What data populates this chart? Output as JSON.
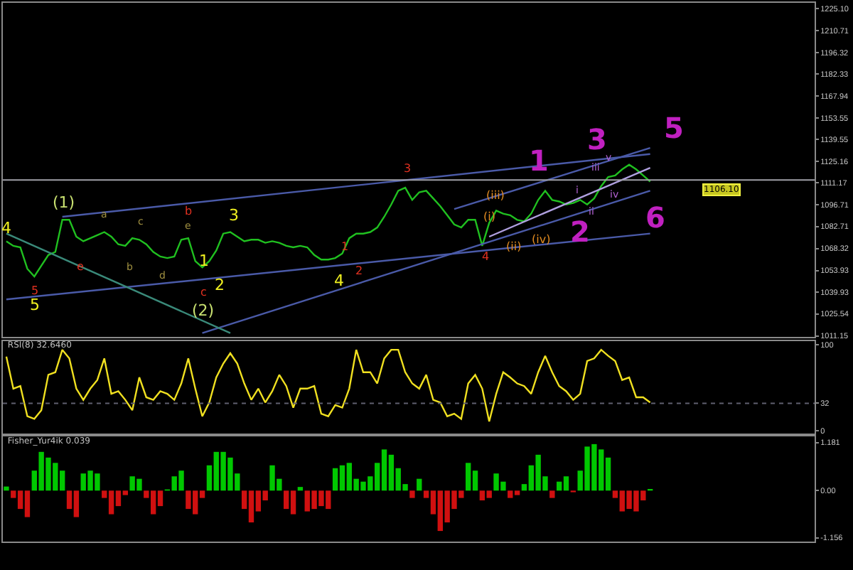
{
  "chart_data": [
    {
      "type": "line",
      "categories": [
        null,
        null,
        null,
        null,
        null,
        null,
        null,
        null,
        null,
        null,
        null,
        null,
        null,
        null,
        null,
        null,
        null,
        null,
        null,
        null,
        null,
        null,
        null,
        null,
        null,
        null,
        null,
        null,
        null,
        null,
        null,
        null,
        null,
        null,
        null,
        null,
        null,
        null,
        null,
        null,
        null,
        null,
        null,
        null,
        null,
        null,
        null,
        null,
        null,
        null,
        null,
        null,
        null,
        null,
        null,
        null,
        null,
        null,
        null,
        null,
        null,
        null,
        null,
        null,
        null,
        null,
        null,
        null,
        null,
        null,
        null,
        null,
        null,
        null,
        null,
        null,
        null,
        null,
        null,
        null,
        null,
        null,
        null,
        null,
        null,
        null,
        null,
        null,
        null,
        null,
        null,
        null,
        null
      ],
      "ylim": [
        1010.5,
        1228.8
      ],
      "yticks": [
        {
          "value": 1225.1,
          "label": "1225.10"
        },
        1210.71,
        1196.32,
        1182.33,
        1167.94,
        1153.55,
        1139.55,
        1125.16,
        1111.17,
        1096.71,
        1082.71,
        1068.32,
        1053.93,
        1039.93,
        1025.54,
        1011.15
      ],
      "tick_labels": "y",
      "ref_lines": [
        {
          "axis": "y",
          "value": 1113,
          "color": "#a0a0a8",
          "line_style": "solid"
        }
      ],
      "annotations": [
        "4",
        "5",
        "3",
        "1",
        "2",
        "4",
        "(1)",
        "(2)",
        "b",
        "c",
        "e",
        "5",
        "1",
        "2",
        "3",
        "4",
        "a",
        "b",
        "c",
        "d",
        "e",
        "(iii)",
        "(i)",
        "(ii)",
        "(iv)",
        "iii",
        "v",
        "i",
        "ii",
        "iv",
        "1",
        "2",
        "3",
        "5",
        "6",
        "1106.10"
      ],
      "series": [
        {
          "color": "#20c020",
          "values": [
            1073,
            1070,
            1069,
            1055,
            1050,
            1057,
            1064,
            1066,
            1087,
            1087,
            1076,
            1073,
            1075,
            1077,
            1079,
            1076,
            1071,
            1070,
            1075,
            1074,
            1071,
            1066,
            1063,
            1062,
            1063,
            1074,
            1075,
            1060,
            1056,
            1060,
            1067,
            1078,
            1079,
            1076,
            1073,
            1074,
            1074,
            1072,
            1073,
            1072,
            1070,
            1069,
            1070,
            1069,
            1064,
            1061,
            1061,
            1062,
            1065,
            1075,
            1078,
            1078,
            1079,
            1082,
            1089,
            1097,
            1106,
            1108,
            1100,
            1105,
            1106,
            1101,
            1096,
            1090,
            1084,
            1082,
            1087,
            1087,
            1070,
            1085,
            1093,
            1091,
            1090,
            1087,
            1086,
            1091,
            1100,
            1106,
            1100,
            1099,
            1097,
            1098,
            1100,
            1097,
            1101,
            1109,
            1115,
            1116,
            1120,
            1123,
            1120,
            1116,
            1112
          ]
        },
        {
          "type": "line",
          "color": "#4a5aa8",
          "values": [
            null,
            null,
            null,
            null,
            null,
            null,
            null,
            null,
            1089,
            null,
            null,
            null,
            null,
            null,
            null,
            null,
            null,
            null,
            null,
            null,
            null,
            null,
            null,
            null,
            null,
            null,
            null,
            null,
            null,
            null,
            null,
            null,
            null,
            null,
            null,
            null,
            null,
            null,
            null,
            null,
            null,
            null,
            null,
            null,
            null,
            null,
            null,
            null,
            null,
            null,
            null,
            null,
            null,
            null,
            null,
            null,
            null,
            null,
            null,
            null,
            null,
            null,
            null,
            null,
            null,
            null,
            null,
            null,
            null,
            null,
            null,
            null,
            null,
            null,
            null,
            null,
            null,
            null,
            null,
            null,
            null,
            null,
            null,
            null,
            null,
            null,
            null,
            null,
            null,
            null,
            null,
            null,
            1130
          ]
        },
        {
          "type": "line",
          "color": "#4a5aa8",
          "values": [
            1035,
            null,
            null,
            null,
            null,
            null,
            null,
            null,
            null,
            null,
            null,
            null,
            null,
            null,
            null,
            null,
            null,
            null,
            null,
            null,
            null,
            null,
            null,
            null,
            null,
            null,
            null,
            null,
            null,
            null,
            null,
            null,
            null,
            null,
            null,
            null,
            null,
            null,
            null,
            null,
            null,
            null,
            null,
            null,
            null,
            null,
            null,
            null,
            null,
            null,
            null,
            null,
            null,
            null,
            null,
            null,
            null,
            null,
            null,
            null,
            null,
            null,
            null,
            null,
            null,
            null,
            null,
            null,
            null,
            null,
            null,
            null,
            null,
            null,
            null,
            null,
            null,
            null,
            null,
            null,
            null,
            null,
            null,
            null,
            null,
            null,
            null,
            null,
            null,
            null,
            null,
            null,
            1078
          ]
        },
        {
          "type": "line",
          "color": "#4a5aa8",
          "values": [
            null,
            null,
            null,
            null,
            null,
            null,
            null,
            null,
            null,
            null,
            null,
            null,
            null,
            null,
            null,
            null,
            null,
            null,
            null,
            null,
            null,
            null,
            null,
            null,
            null,
            null,
            null,
            null,
            1013,
            null,
            null,
            null,
            null,
            null,
            null,
            null,
            null,
            null,
            null,
            null,
            null,
            null,
            null,
            null,
            null,
            null,
            null,
            null,
            null,
            null,
            null,
            null,
            null,
            null,
            null,
            null,
            null,
            null,
            null,
            null,
            null,
            null,
            null,
            null,
            null,
            null,
            null,
            null,
            null,
            null,
            null,
            null,
            null,
            null,
            null,
            null,
            null,
            null,
            null,
            null,
            null,
            null,
            null,
            null,
            null,
            null,
            null,
            null,
            null,
            null,
            null,
            null,
            1106
          ]
        },
        {
          "type": "line",
          "color": "#3a8a7a",
          "values": [
            1078,
            null,
            null,
            null,
            null,
            null,
            null,
            null,
            null,
            null,
            null,
            null,
            null,
            null,
            null,
            null,
            null,
            null,
            null,
            null,
            null,
            null,
            null,
            null,
            null,
            null,
            null,
            null,
            null,
            null,
            null,
            null,
            1013,
            null,
            null,
            null,
            null,
            null,
            null,
            null,
            null,
            null,
            null,
            null,
            null,
            null,
            null,
            null,
            null,
            null,
            null,
            null,
            null,
            null,
            null,
            null,
            null,
            null,
            null,
            null,
            null,
            null,
            null,
            null,
            null,
            null,
            null,
            null,
            null,
            null,
            null,
            null,
            null,
            null,
            null,
            null,
            null,
            null,
            null,
            null,
            null,
            null,
            null,
            null,
            null,
            null,
            null,
            null,
            null,
            null,
            null,
            null,
            null
          ]
        },
        {
          "type": "line",
          "color": "#4a5aa8",
          "values": [
            null,
            null,
            null,
            null,
            null,
            null,
            null,
            null,
            null,
            null,
            null,
            null,
            null,
            null,
            null,
            null,
            null,
            null,
            null,
            null,
            null,
            null,
            null,
            null,
            null,
            null,
            null,
            null,
            null,
            null,
            null,
            null,
            null,
            null,
            null,
            null,
            null,
            null,
            null,
            null,
            null,
            null,
            null,
            null,
            null,
            null,
            null,
            null,
            null,
            null,
            null,
            null,
            null,
            null,
            null,
            null,
            null,
            null,
            null,
            null,
            null,
            null,
            null,
            null,
            1094,
            null,
            null,
            null,
            null,
            null,
            null,
            null,
            null,
            null,
            null,
            null,
            null,
            null,
            null,
            null,
            null,
            null,
            null,
            null,
            null,
            null,
            null,
            null,
            null,
            null,
            null,
            null,
            1134
          ]
        },
        {
          "type": "line",
          "color": "#b0a0e0",
          "values": [
            null,
            null,
            null,
            null,
            null,
            null,
            null,
            null,
            null,
            null,
            null,
            null,
            null,
            null,
            null,
            null,
            null,
            null,
            null,
            null,
            null,
            null,
            null,
            null,
            null,
            null,
            null,
            null,
            null,
            null,
            null,
            null,
            null,
            null,
            null,
            null,
            null,
            null,
            null,
            null,
            null,
            null,
            null,
            null,
            null,
            null,
            null,
            null,
            null,
            null,
            null,
            null,
            null,
            null,
            null,
            null,
            null,
            null,
            null,
            null,
            null,
            null,
            null,
            null,
            null,
            null,
            null,
            null,
            null,
            1076,
            null,
            null,
            null,
            null,
            null,
            null,
            null,
            null,
            null,
            null,
            null,
            null,
            null,
            null,
            null,
            null,
            null,
            null,
            null,
            null,
            null,
            null,
            1121
          ]
        }
      ]
    },
    {
      "type": "line",
      "title": "RSI(8) 32.6460",
      "categories": [
        null,
        null,
        null,
        null,
        null,
        null,
        null,
        null,
        null,
        null,
        null,
        null,
        null,
        null,
        null,
        null,
        null,
        null,
        null,
        null,
        null,
        null,
        null,
        null,
        null,
        null,
        null,
        null,
        null,
        null,
        null,
        null,
        null,
        null,
        null,
        null,
        null,
        null,
        null,
        null,
        null,
        null,
        null,
        null,
        null,
        null,
        null,
        null,
        null,
        null,
        null,
        null,
        null,
        null,
        null,
        null,
        null,
        null,
        null,
        null,
        null,
        null,
        null,
        null,
        null,
        null,
        null,
        null,
        null,
        null,
        null,
        null,
        null,
        null,
        null,
        null,
        null,
        null,
        null,
        null,
        null,
        null,
        null,
        null,
        null,
        null,
        null,
        null,
        null,
        null,
        null,
        null,
        null
      ],
      "ylim": [
        -3,
        104
      ],
      "yticks": [
        100,
        32,
        0
      ],
      "tick_labels": "y",
      "ref_lines": [
        {
          "axis": "y",
          "value": 32,
          "color": "#606070",
          "line_style": "dotted"
        }
      ],
      "series": [
        {
          "color": "#f0e020",
          "values": [
            86,
            49,
            52,
            17,
            14,
            24,
            65,
            68,
            94,
            84,
            49,
            36,
            49,
            59,
            84,
            43,
            46,
            36,
            24,
            62,
            39,
            36,
            46,
            43,
            36,
            55,
            84,
            49,
            17,
            33,
            62,
            78,
            90,
            78,
            55,
            36,
            49,
            33,
            46,
            65,
            52,
            27,
            49,
            49,
            52,
            20,
            17,
            30,
            27,
            49,
            94,
            68,
            68,
            55,
            84,
            94,
            94,
            68,
            55,
            49,
            65,
            36,
            33,
            17,
            20,
            14,
            55,
            65,
            49,
            11,
            43,
            68,
            62,
            55,
            52,
            43,
            68,
            87,
            68,
            52,
            46,
            36,
            43,
            81,
            84,
            94,
            87,
            81,
            59,
            62,
            39,
            39,
            33
          ]
        }
      ]
    },
    {
      "type": "bar",
      "title": "Fisher_Yur4ik 0.039",
      "categories": [
        null,
        null,
        null,
        null,
        null,
        null,
        null,
        null,
        null,
        null,
        null,
        null,
        null,
        null,
        null,
        null,
        null,
        null,
        null,
        null,
        null,
        null,
        null,
        null,
        null,
        null,
        null,
        null,
        null,
        null,
        null,
        null,
        null,
        null,
        null,
        null,
        null,
        null,
        null,
        null,
        null,
        null,
        null,
        null,
        null,
        null,
        null,
        null,
        null,
        null,
        null,
        null,
        null,
        null,
        null,
        null,
        null,
        null,
        null,
        null,
        null,
        null,
        null,
        null,
        null,
        null,
        null,
        null,
        null,
        null,
        null,
        null,
        null,
        null,
        null,
        null,
        null,
        null,
        null,
        null,
        null,
        null,
        null,
        null,
        null,
        null,
        null,
        null,
        null,
        null,
        null,
        null,
        null,
        null,
        null,
        null,
        null,
        null,
        null,
        null,
        null,
        null,
        null,
        null,
        null,
        null,
        null,
        null,
        null,
        null,
        null,
        null,
        null,
        null,
        null,
        null
      ],
      "ylim": [
        -1.25,
        1.33
      ],
      "yticks": [
        1.181,
        {
          "value": 0,
          "label": "0.00"
        },
        -1.156
      ],
      "tick_labels": "y",
      "values": [
        0.1,
        -0.18,
        -0.45,
        -0.65,
        0.49,
        0.95,
        0.81,
        0.68,
        0.49,
        -0.45,
        -0.65,
        0.42,
        0.49,
        0.42,
        -0.18,
        -0.58,
        -0.38,
        -0.11,
        0.35,
        0.29,
        -0.18,
        -0.58,
        -0.38,
        0.03,
        0.35,
        0.49,
        -0.45,
        -0.58,
        -0.18,
        0.62,
        0.95,
        0.95,
        0.81,
        0.42,
        -0.45,
        -0.78,
        -0.51,
        -0.24,
        0.62,
        0.29,
        -0.45,
        -0.58,
        0.09,
        -0.51,
        -0.45,
        -0.38,
        -0.45,
        0.55,
        0.62,
        0.68,
        0.29,
        0.22,
        0.35,
        0.68,
        1.01,
        0.88,
        0.55,
        0.16,
        -0.18,
        0.29,
        -0.18,
        -0.58,
        -0.99,
        -0.78,
        -0.45,
        -0.18,
        0.68,
        0.49,
        -0.24,
        -0.18,
        0.42,
        0.22,
        -0.18,
        -0.11,
        0.16,
        0.62,
        0.88,
        0.35,
        -0.18,
        0.22,
        0.35,
        -0.04,
        0.49,
        1.08,
        1.14,
        1.01,
        0.81,
        -0.18,
        -0.51,
        -0.45,
        -0.51,
        -0.24,
        0.04,
        null,
        null,
        null,
        null,
        null,
        null,
        null,
        null,
        null,
        null,
        null,
        null,
        null,
        null,
        null,
        null,
        null,
        null,
        null,
        null,
        null,
        null,
        null
      ],
      "colors": [
        "#00c800",
        "#d01010",
        "#d01010",
        "#d01010",
        "#00c800",
        "#00c800",
        "#00c800",
        "#00c800",
        "#00c800",
        "#d01010",
        "#d01010",
        "#00c800",
        "#00c800",
        "#00c800",
        "#d01010",
        "#d01010",
        "#d01010",
        "#d01010",
        "#00c800",
        "#00c800",
        "#d01010",
        "#d01010",
        "#d01010",
        "#00c800",
        "#00c800",
        "#00c800",
        "#d01010",
        "#d01010",
        "#d01010",
        "#00c800",
        "#00c800",
        "#00c800",
        "#00c800",
        "#00c800",
        "#d01010",
        "#d01010",
        "#d01010",
        "#d01010",
        "#00c800",
        "#00c800",
        "#d01010",
        "#d01010",
        "#00c800",
        "#d01010",
        "#d01010",
        "#d01010",
        "#d01010",
        "#00c800",
        "#00c800",
        "#00c800",
        "#00c800",
        "#00c800",
        "#00c800",
        "#00c800",
        "#00c800",
        "#00c800",
        "#00c800",
        "#00c800",
        "#d01010",
        "#00c800",
        "#d01010",
        "#d01010",
        "#d01010",
        "#d01010",
        "#d01010",
        "#d01010",
        "#00c800",
        "#00c800",
        "#d01010",
        "#d01010",
        "#00c800",
        "#00c800",
        "#d01010",
        "#d01010",
        "#00c800",
        "#00c800",
        "#00c800",
        "#00c800",
        "#d01010",
        "#00c800",
        "#00c800",
        "#d01010",
        "#00c800",
        "#00c800",
        "#00c800",
        "#00c800",
        "#00c800",
        "#d01010",
        "#d01010",
        "#d01010",
        "#d01010",
        "#d01010",
        "#00c800",
        null,
        null,
        null,
        null,
        null,
        null,
        null,
        null,
        null,
        null,
        null,
        null,
        null,
        null,
        null,
        null,
        null,
        null,
        null,
        null,
        null,
        null,
        null
      ]
    }
  ]
}
